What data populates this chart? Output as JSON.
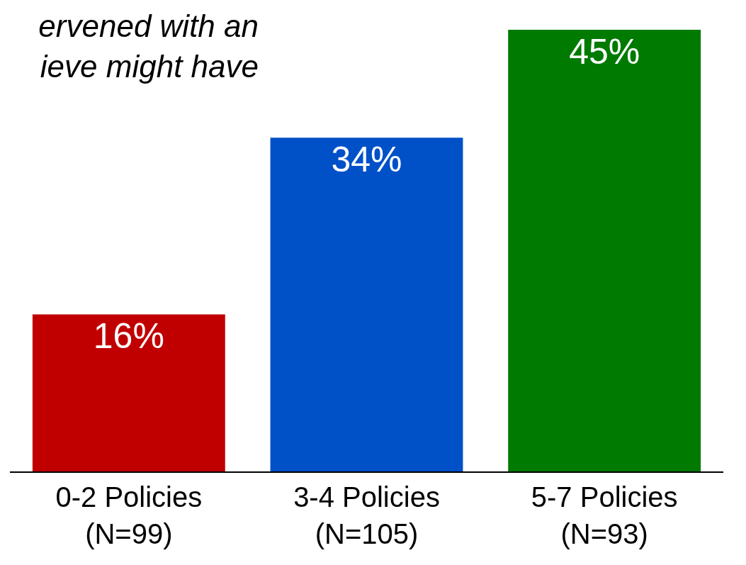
{
  "chart_data": {
    "type": "bar",
    "title": "ervened with an\nieve might have",
    "categories": [
      "0-2 Policies\n(N=99)",
      "3-4 Policies\n(N=105)",
      "5-7 Policies\n(N=93)"
    ],
    "values": [
      16,
      34,
      45
    ],
    "colors": [
      "#c00000",
      "#0050c8",
      "#007a00"
    ],
    "value_labels": [
      "16%",
      "34%",
      "45%"
    ]
  }
}
